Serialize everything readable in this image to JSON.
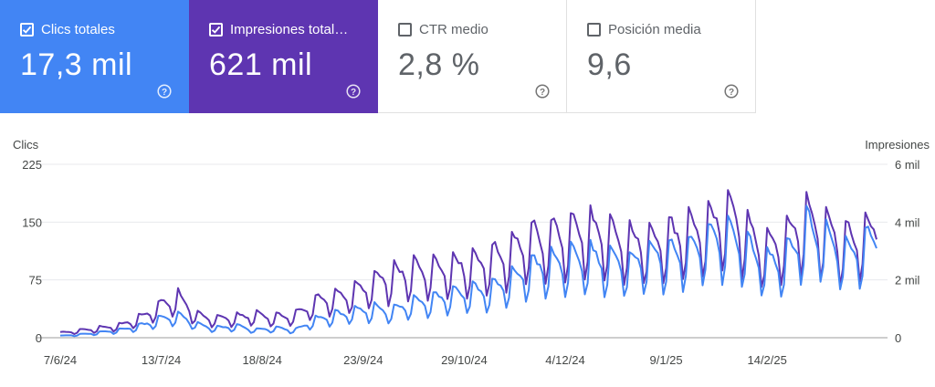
{
  "cards": [
    {
      "label": "Clics totales",
      "value": "17,3 mil",
      "checked": true,
      "color": "#4285f4",
      "help_icon": "help-circle-icon"
    },
    {
      "label": "Impresiones total…",
      "value": "621 mil",
      "checked": true,
      "color": "#5e35b1",
      "help_icon": "help-circle-icon"
    },
    {
      "label": "CTR medio",
      "value": "2,8 %",
      "checked": false,
      "color": "#ffffff",
      "help_icon": "help-circle-icon"
    },
    {
      "label": "Posición media",
      "value": "9,6",
      "checked": false,
      "color": "#ffffff",
      "help_icon": "help-circle-icon"
    }
  ],
  "chart_data": {
    "type": "line",
    "y_left_label": "Clics",
    "y_right_label": "Impresiones",
    "y_left_ticks": [
      "0",
      "75",
      "150",
      "225"
    ],
    "y_right_ticks": [
      "0",
      "2 mil",
      "4 mil",
      "6 mil"
    ],
    "y_left_range": [
      0,
      225
    ],
    "y_right_range": [
      0,
      6000
    ],
    "x_tick_labels": [
      "7/6/24",
      "13/7/24",
      "18/8/24",
      "23/9/24",
      "29/10/24",
      "4/12/24",
      "9/1/25",
      "14/2/25"
    ],
    "x_range": [
      "7/6/24",
      "25/3/25"
    ],
    "grid": true,
    "series": [
      {
        "name": "Clics",
        "color": "#4285f4",
        "axis": "left",
        "weekly": [
          3,
          5,
          8,
          12,
          18,
          28,
          35,
          20,
          15,
          18,
          12,
          15,
          12,
          28,
          35,
          40,
          45,
          42,
          55,
          60,
          68,
          72,
          75,
          90,
          110,
          115,
          120,
          125,
          120,
          115,
          130,
          128,
          135,
          150,
          160,
          140,
          115,
          125,
          170,
          150,
          130,
          145,
          165,
          150,
          120,
          105
        ]
      },
      {
        "name": "Impresiones",
        "color": "#5e35b1",
        "axis": "right",
        "weekly": [
          200,
          300,
          400,
          500,
          800,
          1300,
          1700,
          900,
          800,
          850,
          950,
          850,
          950,
          1500,
          1700,
          1900,
          2300,
          2600,
          2800,
          2900,
          3000,
          3100,
          3300,
          3700,
          4100,
          4200,
          4400,
          4500,
          4200,
          4000,
          4100,
          4200,
          4400,
          4700,
          5200,
          4400,
          3800,
          4200,
          5000,
          4600,
          4000,
          4300,
          4800,
          4700,
          4300,
          3500
        ]
      }
    ]
  }
}
